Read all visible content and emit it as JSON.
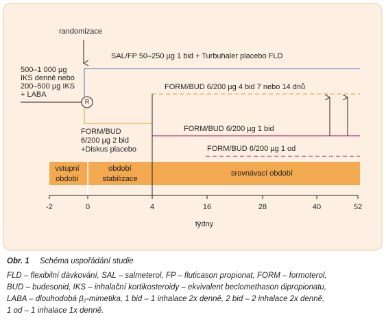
{
  "diagram": {
    "randomization_label": "randomizace",
    "baseline_treatment": [
      "500–1 000 µg",
      "IKS denně nebo",
      "200–500 µg IKS",
      "+ LABA"
    ],
    "randomization_marker": "R",
    "arms": [
      "SAL/FP 50–250 µg  1 bid + Turbuhaler placebo FLD",
      "FORM/BUD 6/200 µg 4 bid 7 nebo 14 dnů",
      "FORM/BUD 6/200 µg 1 bid",
      "FORM/BUD 6/200 µg 1 od"
    ],
    "stabilization_treatment": [
      "FORM/BUD",
      "6/200 µg 2 bid",
      "+Diskus placebo"
    ],
    "periods": [
      [
        "vstupní",
        "období"
      ],
      [
        "období",
        "stabilizace"
      ],
      [
        "srovnávací období"
      ]
    ],
    "x_axis": {
      "ticks": [
        -2,
        0,
        4,
        16,
        28,
        40,
        52
      ],
      "label": "týdny"
    }
  },
  "caption": {
    "number": "Obr. 1",
    "title": "Schéma uspořádání studie"
  },
  "footnote": [
    "FLD – flexibilní dávkování, SAL – salmeterol, FP – fluticason propionat, FORM – formoterol,",
    "BUD – budesonid, IKS – inhalační kortikosteroidy – ekvivalent beclomethason dipropionatu,",
    "LABA – dlouhodobá β₂-mimetika, 1 bid – 1 inhalace 2x denně, 2 bid – 2 inhalace 2x denně,",
    "1 od – 1 inhalace 1x denně."
  ]
}
